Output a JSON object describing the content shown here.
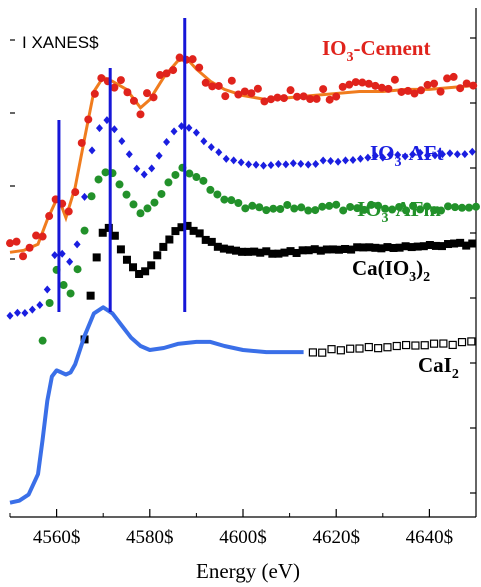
{
  "chart_data": {
    "type": "line",
    "panel_label": "I XANES$",
    "xlabel": "Energy (eV)",
    "ylabel": "",
    "xlim": [
      4550,
      4650
    ],
    "x_ticks": [
      4560,
      4580,
      4600,
      4620,
      4640
    ],
    "x_tick_labels": [
      "4560$",
      "4580$",
      "4600$",
      "4620$",
      "4640$"
    ],
    "y_scale": "normalized absorption (offset, no printed ticks)",
    "grid": false,
    "legend": "inline labels to right of each trace",
    "reference_lines_eV": [
      4560.5,
      4571.5,
      4587.5
    ],
    "colors": {
      "cement": "#e0231c",
      "cement_fit": "#f07c1e",
      "aft": "#1a1ee0",
      "afm": "#22912a",
      "caio3": "#000000",
      "cai2": "#3a6fe8",
      "vline": "#1616d8"
    },
    "series": [
      {
        "name": "IO3-Cement",
        "label_main": "IO",
        "label_sub": "3",
        "label_rest": "-Cement",
        "marker": "filled-circle",
        "x": [
          4550,
          4553,
          4556,
          4558,
          4560,
          4561,
          4562,
          4564,
          4566,
          4568,
          4570,
          4572,
          4575,
          4578,
          4580,
          4583,
          4586,
          4588,
          4590,
          4593,
          4596,
          4600,
          4605,
          4610,
          4615,
          4620,
          4625,
          4630,
          4635,
          4640,
          4645,
          4650
        ],
        "y": [
          1.26,
          1.27,
          1.3,
          1.42,
          1.52,
          1.49,
          1.43,
          1.58,
          1.82,
          2.05,
          2.12,
          2.1,
          2.06,
          1.97,
          2.01,
          2.12,
          2.2,
          2.21,
          2.16,
          2.1,
          2.06,
          2.03,
          2.01,
          2.02,
          2.03,
          2.04,
          2.05,
          2.05,
          2.06,
          2.06,
          2.07,
          2.08
        ]
      },
      {
        "name": "IO3-AFt",
        "label_main": "IO",
        "label_sub": "3",
        "label_rest": "-AFt",
        "marker": "filled-diamond",
        "x": [
          4550,
          4553,
          4556,
          4558,
          4560,
          4561,
          4562,
          4564,
          4566,
          4568,
          4570,
          4572,
          4575,
          4578,
          4580,
          4583,
          4586,
          4588,
          4590,
          4593,
          4596,
          4600,
          4605,
          4610,
          4615,
          4620,
          4625,
          4630,
          4635,
          4640,
          4645,
          4650
        ],
        "y": [
          0.94,
          0.95,
          0.97,
          1.07,
          1.29,
          1.27,
          1.17,
          1.23,
          1.53,
          1.8,
          1.9,
          1.88,
          1.75,
          1.63,
          1.65,
          1.77,
          1.86,
          1.87,
          1.83,
          1.76,
          1.72,
          1.68,
          1.67,
          1.68,
          1.69,
          1.7,
          1.71,
          1.72,
          1.73,
          1.73,
          1.74,
          1.74
        ]
      },
      {
        "name": "IO3-AFm",
        "label_main": "IO",
        "label_sub": "3",
        "label_rest": "-AFm",
        "marker": "filled-circle",
        "x": [
          4557,
          4558,
          4560,
          4561,
          4562,
          4564,
          4566,
          4568,
          4570,
          4572,
          4575,
          4578,
          4580,
          4583,
          4586,
          4588,
          4590,
          4593,
          4596,
          4600,
          4605,
          4610,
          4615,
          4620,
          4625,
          4630,
          4635,
          4640,
          4645,
          4650
        ],
        "y": [
          0.82,
          0.93,
          1.16,
          1.13,
          1.02,
          1.09,
          1.35,
          1.57,
          1.66,
          1.65,
          1.54,
          1.43,
          1.46,
          1.57,
          1.65,
          1.66,
          1.62,
          1.56,
          1.51,
          1.48,
          1.47,
          1.47,
          1.47,
          1.47,
          1.47,
          1.47,
          1.47,
          1.47,
          1.47,
          1.47
        ]
      },
      {
        "name": "Ca(IO3)2",
        "label_main": "Ca(IO",
        "label_sub": "3",
        "label_rest": ")",
        "label_sub2": "2",
        "marker": "filled-square",
        "x": [
          4566,
          4567,
          4568,
          4569,
          4570,
          4571,
          4572,
          4574,
          4576,
          4578,
          4580,
          4583,
          4586,
          4588,
          4590,
          4593,
          4596,
          4600,
          4605,
          4610,
          4615,
          4620,
          4625,
          4630,
          4635,
          4640,
          4645,
          4650
        ],
        "y": [
          0.82,
          0.98,
          1.15,
          1.28,
          1.36,
          1.38,
          1.35,
          1.26,
          1.18,
          1.14,
          1.17,
          1.28,
          1.37,
          1.38,
          1.35,
          1.3,
          1.27,
          1.25,
          1.25,
          1.25,
          1.26,
          1.26,
          1.27,
          1.27,
          1.28,
          1.28,
          1.29,
          1.29
        ]
      },
      {
        "name": "CaI2",
        "label_main": "CaI",
        "label_sub": "2",
        "marker": "solid-line",
        "x": [
          4550,
          4552,
          4554,
          4556,
          4557,
          4558,
          4559,
          4560,
          4561,
          4562,
          4563,
          4564,
          4566,
          4568,
          4570,
          4572,
          4574,
          4576,
          4578,
          4580,
          4583,
          4586,
          4590,
          4593,
          4596,
          4600,
          4605,
          4610,
          4613
        ],
        "y": [
          0.02,
          0.03,
          0.06,
          0.16,
          0.33,
          0.52,
          0.64,
          0.67,
          0.66,
          0.65,
          0.66,
          0.7,
          0.84,
          0.95,
          0.98,
          0.95,
          0.89,
          0.83,
          0.79,
          0.77,
          0.78,
          0.8,
          0.81,
          0.81,
          0.79,
          0.77,
          0.76,
          0.76,
          0.76
        ]
      },
      {
        "name": "CaI2 (open markers)",
        "marker": "open-square",
        "x": [
          4615,
          4616,
          4617,
          4618,
          4620,
          4622,
          4624,
          4626,
          4628,
          4630,
          4632,
          4634,
          4636,
          4638,
          4640,
          4642,
          4644,
          4646,
          4648,
          4650
        ],
        "y": [
          0.76,
          0.76,
          0.76,
          0.77,
          0.77,
          0.77,
          0.78,
          0.78,
          0.78,
          0.78,
          0.79,
          0.79,
          0.79,
          0.79,
          0.8,
          0.8,
          0.8,
          0.8,
          0.81,
          0.81
        ]
      }
    ]
  }
}
